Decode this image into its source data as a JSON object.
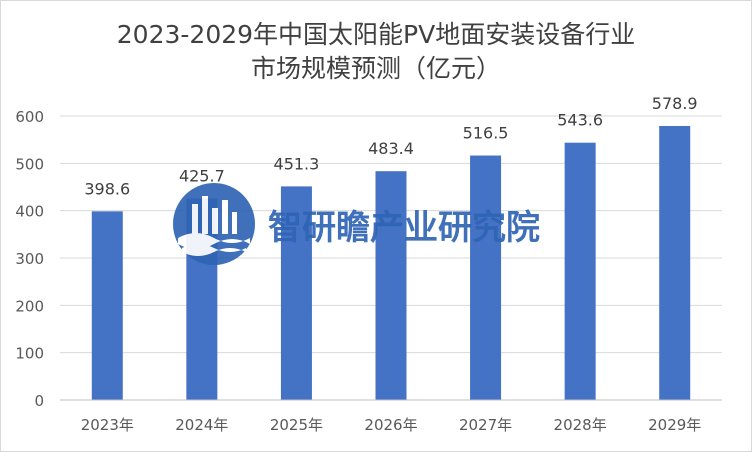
{
  "chart_data": {
    "type": "bar",
    "title_line1": "2023-2029年中国太阳能PV地面安装设备行业",
    "title_line2": "市场规模预测（亿元）",
    "categories": [
      "2023年",
      "2024年",
      "2025年",
      "2026年",
      "2027年",
      "2028年",
      "2029年"
    ],
    "values": [
      398.6,
      425.7,
      451.3,
      483.4,
      516.5,
      543.6,
      578.9
    ],
    "value_labels": [
      "398.6",
      "425.7",
      "451.3",
      "483.4",
      "516.5",
      "543.6",
      "578.9"
    ],
    "ylim": [
      0,
      600
    ],
    "yticks": [
      0,
      100,
      200,
      300,
      400,
      500,
      600
    ],
    "grid": true,
    "bar_color": "#4472c4",
    "xlabel": "",
    "ylabel": ""
  },
  "watermark": {
    "text": "智研瞻产业研究院",
    "color": "#2f64b4"
  }
}
